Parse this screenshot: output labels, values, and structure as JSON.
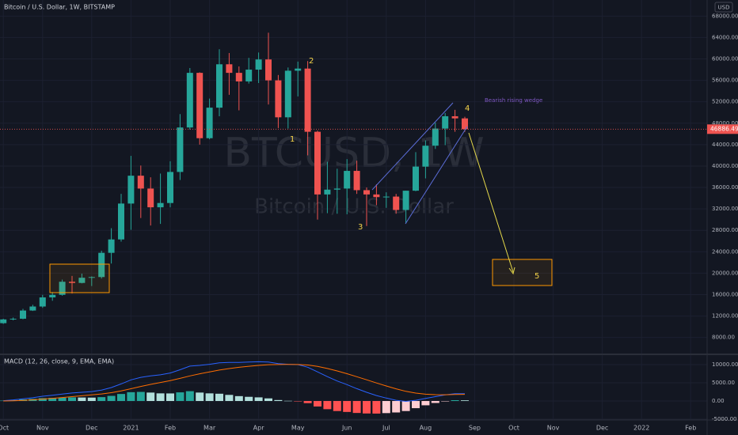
{
  "chart_data": [
    {
      "type": "candlestick",
      "title": "Bitcoin / U.S. Dollar, 1W, BITSTAMP",
      "currency": "USD",
      "watermark": [
        "BTCUSD, 1W",
        "Bitcoin / U.S. Dollar"
      ],
      "annotations": [
        "1",
        "2",
        "3",
        "4",
        "5",
        "Bearish rising wedge"
      ],
      "categories": [
        "Oct",
        null,
        null,
        null,
        "Nov",
        null,
        null,
        null,
        null,
        "Dec",
        null,
        null,
        null,
        "2021",
        null,
        null,
        null,
        "Feb",
        null,
        null,
        null,
        "Mar",
        null,
        null,
        null,
        null,
        "Apr",
        null,
        null,
        null,
        "May",
        null,
        null,
        null,
        null,
        "Jun",
        null,
        null,
        null,
        "Jul",
        null,
        null,
        null,
        "Aug",
        null,
        null,
        null,
        null,
        "Sep",
        null,
        null,
        null,
        "Oct",
        null,
        null,
        null,
        "Nov",
        null,
        null,
        null,
        null,
        "Dec",
        null,
        null,
        null,
        "2022",
        null,
        null,
        null,
        null,
        "Feb"
      ],
      "open": [
        10670,
        11370,
        11500,
        13030,
        13780,
        15480,
        15960,
        18400,
        18180,
        19150,
        19280,
        23800,
        26300,
        33000,
        38200,
        35800,
        32300,
        33100,
        38900,
        47200,
        57400,
        45200,
        50900,
        59000,
        57400,
        55800,
        58000,
        59900,
        56000,
        49100,
        57800,
        58200,
        46400,
        34700,
        35600,
        35800,
        39100,
        35500,
        34700,
        34200,
        34300,
        31800,
        35400,
        39900,
        43800,
        47000,
        49300,
        48900,
        null,
        null,
        null,
        null,
        null,
        null,
        null,
        null,
        null,
        null,
        null,
        null,
        null,
        null,
        null,
        null,
        null,
        null,
        null,
        null,
        null,
        null,
        null
      ],
      "high": [
        11490,
        11730,
        13350,
        14100,
        15960,
        16480,
        18800,
        19480,
        19920,
        19400,
        24200,
        28400,
        34800,
        41900,
        40100,
        37900,
        38600,
        40900,
        49700,
        58300,
        57500,
        52600,
        61800,
        61100,
        58600,
        60200,
        61200,
        64900,
        57000,
        58400,
        59500,
        59600,
        46600,
        40800,
        39500,
        41300,
        41000,
        36000,
        36600,
        35100,
        34800,
        35400,
        42600,
        44800,
        48100,
        49900,
        50500,
        49200,
        null,
        null,
        null,
        null,
        null,
        null,
        null,
        null,
        null,
        null,
        null,
        null,
        null,
        null,
        null,
        null,
        null,
        null,
        null,
        null,
        null,
        null,
        null
      ],
      "low": [
        10540,
        11200,
        11400,
        12950,
        13530,
        14850,
        15800,
        16200,
        18100,
        17600,
        19000,
        21800,
        25900,
        28100,
        30300,
        28900,
        29200,
        32300,
        37400,
        46800,
        44000,
        45000,
        49300,
        53300,
        50400,
        55400,
        55500,
        51500,
        47100,
        47000,
        53000,
        42000,
        30000,
        31200,
        31100,
        31000,
        34800,
        28800,
        32700,
        32200,
        31100,
        29300,
        35300,
        37700,
        43200,
        43900,
        46400,
        46400,
        null,
        null,
        null,
        null,
        null,
        null,
        null,
        null,
        null,
        null,
        null,
        null,
        null,
        null,
        null,
        null,
        null,
        null,
        null,
        null,
        null,
        null,
        null
      ],
      "close": [
        11370,
        11500,
        13030,
        13780,
        15480,
        15960,
        18400,
        18180,
        19150,
        19280,
        23800,
        26300,
        33000,
        38200,
        35800,
        32300,
        33100,
        38900,
        47200,
        57400,
        45200,
        50900,
        59000,
        57400,
        55800,
        58000,
        59900,
        56000,
        49100,
        57800,
        58200,
        46400,
        34700,
        35600,
        35800,
        39100,
        35500,
        34700,
        34200,
        34300,
        31800,
        35400,
        39900,
        43800,
        47000,
        49300,
        48900,
        46886.49,
        null,
        null,
        null,
        null,
        null,
        null,
        null,
        null,
        null,
        null,
        null,
        null,
        null,
        null,
        null,
        null,
        null,
        null,
        null,
        null,
        null,
        null,
        null
      ],
      "up_color": "#26a69a",
      "down_color": "#ef5350",
      "ylim": [
        5000,
        71000
      ],
      "yticks": [
        {
          "value": 8000,
          "label": "8000.00"
        },
        {
          "value": 12000,
          "label": "12000.00"
        },
        {
          "value": 16000,
          "label": "16000.00"
        },
        {
          "value": 20000,
          "label": "20000.00"
        },
        {
          "value": 24000,
          "label": "24000.00"
        },
        {
          "value": 28000,
          "label": "28000.00"
        },
        {
          "value": 32000,
          "label": "32000.00"
        },
        {
          "value": 36000,
          "label": "36000.00"
        },
        {
          "value": 40000,
          "label": "40000.00"
        },
        {
          "value": 44000,
          "label": "44000.00"
        },
        {
          "value": 48000,
          "label": "48000.00"
        },
        {
          "value": 52000,
          "label": "52000.00"
        },
        {
          "value": 56000,
          "label": "56000.00"
        },
        {
          "value": 60000,
          "label": "60000.00"
        },
        {
          "value": 64000,
          "label": "64000.00"
        },
        {
          "value": 68000,
          "label": "68000.00"
        }
      ],
      "grid": true
    },
    {
      "type": "macd",
      "title": "MACD (12, 26, close, 9, EMA, EMA)",
      "macd_line": {
        "color": "#2962ff",
        "values": [
          100,
          300,
          600,
          900,
          1300,
          1600,
          1900,
          2200,
          2400,
          2600,
          3000,
          3700,
          4700,
          5800,
          6500,
          6900,
          7200,
          7700,
          8600,
          9600,
          9800,
          10100,
          10500,
          10600,
          10600,
          10700,
          10800,
          10700,
          10300,
          10100,
          10000,
          9300,
          8000,
          6700,
          5500,
          4500,
          3400,
          2400,
          1500,
          800,
          200,
          -100,
          200,
          700,
          1200,
          1700,
          2000,
          2000,
          null,
          null,
          null,
          null,
          null,
          null,
          null,
          null,
          null,
          null,
          null,
          null,
          null,
          null,
          null,
          null,
          null,
          null,
          null,
          null,
          null,
          null,
          null
        ]
      },
      "signal_line": {
        "color": "#ff6d00",
        "values": [
          0,
          60,
          170,
          320,
          520,
          740,
          970,
          1200,
          1440,
          1670,
          1940,
          2290,
          2770,
          3380,
          4000,
          4580,
          5100,
          5620,
          6220,
          6900,
          7480,
          8000,
          8500,
          8920,
          9260,
          9550,
          9800,
          9980,
          10040,
          10050,
          10040,
          9890,
          9510,
          8950,
          8260,
          7510,
          6690,
          5830,
          4960,
          4130,
          3350,
          2660,
          2170,
          1880,
          1740,
          1730,
          1780,
          1820,
          null,
          null,
          null,
          null,
          null,
          null,
          null,
          null,
          null,
          null,
          null,
          null,
          null,
          null,
          null,
          null,
          null,
          null,
          null,
          null,
          null,
          null,
          null
        ]
      },
      "histogram": {
        "colors": {
          "grow_above": "#26a69a",
          "fall_above": "#b2dfdb",
          "grow_below": "#ffcdd2",
          "fall_below": "#ff5252"
        },
        "values": [
          100,
          240,
          430,
          580,
          780,
          860,
          930,
          1000,
          960,
          930,
          1060,
          1410,
          1930,
          2420,
          2500,
          2320,
          2100,
          2080,
          2380,
          2700,
          2320,
          2100,
          2000,
          1680,
          1340,
          1150,
          1000,
          720,
          260,
          50,
          -40,
          -590,
          -1510,
          -2250,
          -2760,
          -3010,
          -3290,
          -3430,
          -3460,
          -3330,
          -3150,
          -2760,
          -1970,
          -1180,
          -540,
          -30,
          220,
          180,
          null,
          null,
          null,
          null,
          null,
          null,
          null,
          null,
          null,
          null,
          null,
          null,
          null,
          null,
          null,
          null,
          null,
          null,
          null,
          null,
          null,
          null,
          null
        ]
      },
      "ylim": [
        -5000,
        12400
      ],
      "yticks": [
        {
          "value": -5000,
          "label": "-5000.00"
        },
        {
          "value": 0,
          "label": "0.00"
        },
        {
          "value": 5000,
          "label": "5000.00"
        },
        {
          "value": 10000,
          "label": "10000.00"
        }
      ]
    }
  ]
}
